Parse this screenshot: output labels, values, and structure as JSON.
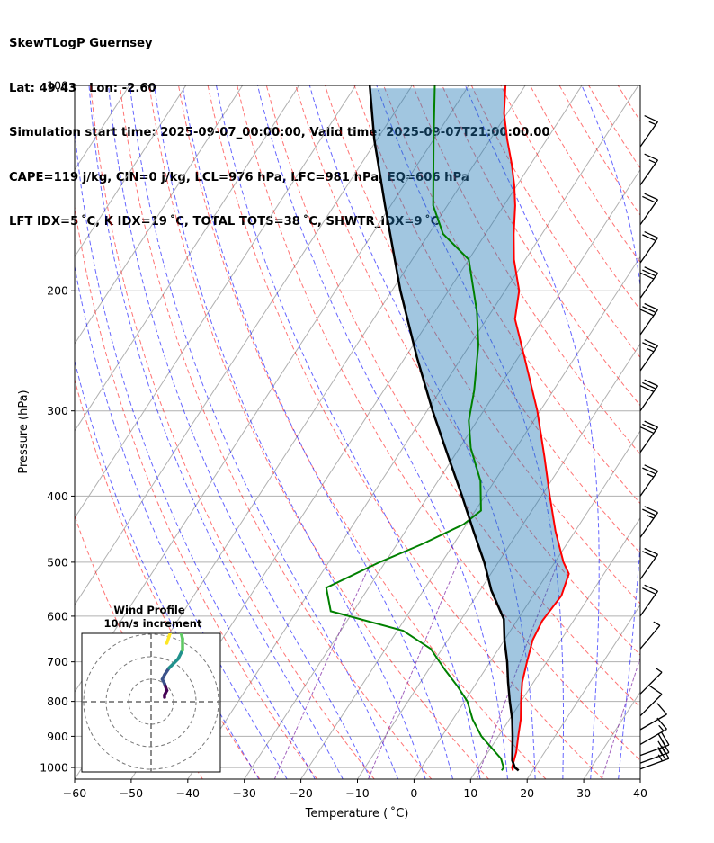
{
  "header": {
    "title_line1": "SkewTLogP Guernsey",
    "title_line2": "Lat: 49.43   Lon: -2.60",
    "title_line3": "Simulation start time: 2025-09-07_00:00:00, Valid time: 2025-09-07T21:00:00.00",
    "title_line4": "CAPE=119 j/kg, CIN=0 j/kg, LCL=976 hPa, LFC=981 hPa, EQ=606 hPa",
    "title_line5": "LFT IDX=5 ˚C, K IDX=19 ˚C, TOTAL TOTS=38 ˚C, SHWTR_IDX=9 ˚C"
  },
  "chart_data": {
    "type": "skewt",
    "xlabel": "Temperature ( ˚C)",
    "ylabel": "Pressure (hPa)",
    "xlim": [
      -60,
      40
    ],
    "ylim": [
      1040,
      100
    ],
    "x_ticks": [
      -60,
      -50,
      -40,
      -30,
      -20,
      -10,
      0,
      10,
      20,
      30,
      40
    ],
    "x_tick_labels": [
      "−60",
      "−50",
      "−40",
      "−30",
      "−20",
      "−10",
      "0",
      "10",
      "20",
      "30",
      "40"
    ],
    "y_ticks": [
      1000,
      900,
      800,
      700,
      600,
      500,
      400,
      300,
      200,
      100
    ],
    "y_tick_labels": [
      "1000",
      "900",
      "800",
      "700",
      "600",
      "500",
      "400",
      "300",
      "200",
      "100"
    ],
    "grid": true,
    "colors": {
      "temperature": "#ff0000",
      "dewpoint": "#008000",
      "parcel": "#000000",
      "cape_fill": "#1f77b4",
      "cin_fill": "#d62728",
      "dry_adiabat": "#ff0000",
      "moist_adiabat": "#0000ff",
      "mixing_ratio": "#7b1fa2",
      "isotherm": "#888888",
      "isobar": "#888888"
    },
    "temperature": [
      [
        1010,
        16.5
      ],
      [
        1000,
        16.0
      ],
      [
        950,
        15.0
      ],
      [
        900,
        13.5
      ],
      [
        850,
        12.0
      ],
      [
        800,
        10.0
      ],
      [
        750,
        8.0
      ],
      [
        700,
        6.5
      ],
      [
        650,
        5.0
      ],
      [
        610,
        4.5
      ],
      [
        560,
        5.0
      ],
      [
        520,
        3.8
      ],
      [
        500,
        1.5
      ],
      [
        450,
        -3.5
      ],
      [
        400,
        -8.5
      ],
      [
        350,
        -14.0
      ],
      [
        300,
        -20.5
      ],
      [
        250,
        -29.0
      ],
      [
        220,
        -35.0
      ],
      [
        200,
        -37.5
      ],
      [
        180,
        -42.0
      ],
      [
        165,
        -45.0
      ],
      [
        150,
        -48.0
      ],
      [
        140,
        -50.5
      ],
      [
        130,
        -53.5
      ],
      [
        120,
        -57.0
      ],
      [
        110,
        -60.5
      ],
      [
        100,
        -63.5
      ]
    ],
    "dewpoint": [
      [
        1010,
        14.5
      ],
      [
        1000,
        14.5
      ],
      [
        970,
        13.0
      ],
      [
        900,
        7.0
      ],
      [
        850,
        3.5
      ],
      [
        800,
        0.5
      ],
      [
        760,
        -3.0
      ],
      [
        720,
        -7.0
      ],
      [
        670,
        -12.0
      ],
      [
        630,
        -19.0
      ],
      [
        590,
        -34.0
      ],
      [
        545,
        -37.5
      ],
      [
        500,
        -31.0
      ],
      [
        470,
        -25.5
      ],
      [
        440,
        -20.5
      ],
      [
        420,
        -19.0
      ],
      [
        380,
        -22.5
      ],
      [
        340,
        -28.0
      ],
      [
        310,
        -31.5
      ],
      [
        280,
        -34.0
      ],
      [
        240,
        -38.5
      ],
      [
        215,
        -42.5
      ],
      [
        180,
        -50.0
      ],
      [
        165,
        -57.5
      ],
      [
        150,
        -62.5
      ],
      [
        120,
        -70.0
      ],
      [
        100,
        -76.0
      ]
    ],
    "parcel": [
      [
        1010,
        17.5
      ],
      [
        1000,
        16.5
      ],
      [
        976,
        15.2
      ],
      [
        900,
        12.5
      ],
      [
        850,
        10.5
      ],
      [
        800,
        8.0
      ],
      [
        750,
        5.5
      ],
      [
        700,
        3.0
      ],
      [
        650,
        0.0
      ],
      [
        606,
        -2.5
      ],
      [
        550,
        -8.0
      ],
      [
        500,
        -12.5
      ],
      [
        450,
        -18.0
      ],
      [
        400,
        -24.0
      ],
      [
        350,
        -31.0
      ],
      [
        300,
        -39.0
      ],
      [
        250,
        -48.0
      ],
      [
        200,
        -58.5
      ],
      [
        150,
        -71.0
      ],
      [
        120,
        -80.5
      ],
      [
        100,
        -87.5
      ]
    ],
    "wind_barbs": [
      {
        "p": 1005,
        "speed_kt": 25,
        "dir_deg": 250
      },
      {
        "p": 985,
        "speed_kt": 25,
        "dir_deg": 250
      },
      {
        "p": 960,
        "speed_kt": 20,
        "dir_deg": 250
      },
      {
        "p": 925,
        "speed_kt": 15,
        "dir_deg": 240
      },
      {
        "p": 880,
        "speed_kt": 10,
        "dir_deg": 240
      },
      {
        "p": 840,
        "speed_kt": 10,
        "dir_deg": 225
      },
      {
        "p": 780,
        "speed_kt": 5,
        "dir_deg": 225
      },
      {
        "p": 670,
        "speed_kt": 5,
        "dir_deg": 220
      },
      {
        "p": 600,
        "speed_kt": 20,
        "dir_deg": 215
      },
      {
        "p": 530,
        "speed_kt": 20,
        "dir_deg": 215
      },
      {
        "p": 460,
        "speed_kt": 25,
        "dir_deg": 215
      },
      {
        "p": 400,
        "speed_kt": 25,
        "dir_deg": 215
      },
      {
        "p": 345,
        "speed_kt": 30,
        "dir_deg": 215
      },
      {
        "p": 300,
        "speed_kt": 30,
        "dir_deg": 215
      },
      {
        "p": 262,
        "speed_kt": 25,
        "dir_deg": 215
      },
      {
        "p": 232,
        "speed_kt": 30,
        "dir_deg": 215
      },
      {
        "p": 205,
        "speed_kt": 30,
        "dir_deg": 215
      },
      {
        "p": 182,
        "speed_kt": 20,
        "dir_deg": 215
      },
      {
        "p": 160,
        "speed_kt": 20,
        "dir_deg": 215
      },
      {
        "p": 140,
        "speed_kt": 15,
        "dir_deg": 215
      },
      {
        "p": 123,
        "speed_kt": 15,
        "dir_deg": 215
      }
    ],
    "hodograph": {
      "title_line1": "Wind Profile",
      "title_line2": "10m/s increment",
      "rings_ms": [
        10,
        20,
        30
      ],
      "colormap": [
        "#440154",
        "#3b528b",
        "#21918c",
        "#5ec962",
        "#fde725"
      ],
      "points": [
        [
          6,
          2
        ],
        [
          6,
          3
        ],
        [
          7,
          5
        ],
        [
          6,
          8
        ],
        [
          5,
          10
        ],
        [
          6,
          12
        ],
        [
          8,
          15
        ],
        [
          12,
          19
        ],
        [
          14,
          23
        ],
        [
          14,
          28
        ],
        [
          13,
          32
        ],
        [
          9,
          32
        ],
        [
          8,
          29
        ],
        [
          7,
          26
        ]
      ]
    }
  }
}
